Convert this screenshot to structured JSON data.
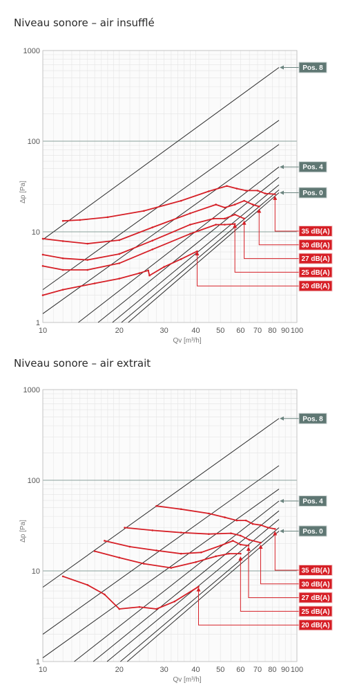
{
  "chart_data": [
    {
      "type": "line",
      "title": "Niveau sonore – air insufflé",
      "xlabel": "Qv [m³/h]",
      "ylabel": "Δp [Pa]",
      "xscale": "log",
      "yscale": "log",
      "xlim": [
        10,
        100
      ],
      "ylim": [
        1,
        1000
      ],
      "xticks": [
        "10",
        "20",
        "30",
        "40",
        "50",
        "60",
        "70",
        "80",
        "90",
        "100"
      ],
      "yticks": [
        "1",
        "10",
        "100",
        "1000"
      ],
      "position_lines": [
        {
          "name": "Pos. 8",
          "points": [
            [
              10,
              8.2
            ],
            [
              85,
              650
            ]
          ]
        },
        {
          "name": "",
          "points": [
            [
              10,
              2.3
            ],
            [
              85,
              170
            ]
          ]
        },
        {
          "name": "",
          "points": [
            [
              10,
              1.25
            ],
            [
              85,
              92
            ]
          ]
        },
        {
          "name": "Pos. 4",
          "points": [
            [
              13.8,
              1.0
            ],
            [
              85,
              52
            ]
          ]
        },
        {
          "name": "",
          "points": [
            [
              16.5,
              1.0
            ],
            [
              85,
              40
            ]
          ]
        },
        {
          "name": "",
          "points": [
            [
              18.8,
              1.0
            ],
            [
              85,
              33
            ]
          ]
        },
        {
          "name": "",
          "points": [
            [
              20.4,
              1.0
            ],
            [
              85,
              29
            ]
          ]
        },
        {
          "name": "Pos. 0",
          "points": [
            [
              21.7,
              1.0
            ],
            [
              85,
              27
            ]
          ]
        }
      ],
      "series": [
        {
          "name": "35 dB(A)",
          "pointer": [
            82,
            25
          ],
          "points": [
            [
              12,
              13.2
            ],
            [
              14,
              13.5
            ],
            [
              18,
              14.5
            ],
            [
              25,
              17
            ],
            [
              35,
              22
            ],
            [
              45,
              28
            ],
            [
              53,
              32
            ],
            [
              58,
              30
            ],
            [
              63,
              28.5
            ],
            [
              70,
              28.5
            ],
            [
              75,
              26.5
            ],
            [
              82,
              26
            ]
          ]
        },
        {
          "name": "30 dB(A)",
          "pointer": [
            71,
            18
          ],
          "points": [
            [
              10,
              8.4
            ],
            [
              12,
              7.9
            ],
            [
              15,
              7.4
            ],
            [
              20,
              8.1
            ],
            [
              27,
              11.2
            ],
            [
              38,
              16
            ],
            [
              48,
              20
            ],
            [
              52,
              18.5
            ],
            [
              57,
              20
            ],
            [
              62,
              22
            ],
            [
              67,
              20
            ],
            [
              71,
              19
            ]
          ]
        },
        {
          "name": "27 dB(A)",
          "pointer": [
            62,
            13.3
          ],
          "points": [
            [
              10,
              5.6
            ],
            [
              12,
              5.1
            ],
            [
              15,
              4.9
            ],
            [
              20,
              5.7
            ],
            [
              27,
              8
            ],
            [
              38,
              12
            ],
            [
              47,
              14
            ],
            [
              52,
              14
            ],
            [
              57,
              15.5
            ],
            [
              62,
              14
            ]
          ]
        },
        {
          "name": "25 dB(A)",
          "pointer": [
            57,
            12.3
          ],
          "points": [
            [
              10,
              4.2
            ],
            [
              12,
              3.8
            ],
            [
              15,
              3.8
            ],
            [
              20,
              4.5
            ],
            [
              27,
              6.4
            ],
            [
              38,
              9.5
            ],
            [
              48,
              12
            ],
            [
              52,
              12
            ],
            [
              57,
              12.2
            ]
          ]
        },
        {
          "name": "20 dB(A)",
          "pointer": [
            40.5,
            6.1
          ],
          "points": [
            [
              10,
              2.0
            ],
            [
              12,
              2.3
            ],
            [
              16,
              2.7
            ],
            [
              20,
              3.05
            ],
            [
              24,
              3.5
            ],
            [
              26,
              3.75
            ],
            [
              26.3,
              3.3
            ],
            [
              30,
              4.1
            ],
            [
              35,
              5.0
            ],
            [
              40.5,
              6.1
            ]
          ]
        }
      ]
    },
    {
      "type": "line",
      "title": "Niveau sonore – air extrait",
      "xlabel": "Qv [m³/h]",
      "ylabel": "Δp [Pa]",
      "xscale": "log",
      "yscale": "log",
      "xlim": [
        10,
        100
      ],
      "ylim": [
        1,
        1000
      ],
      "xticks": [
        "10",
        "20",
        "30",
        "40",
        "50",
        "60",
        "70",
        "80",
        "90",
        "100"
      ],
      "yticks": [
        "1",
        "10",
        "100",
        "1000"
      ],
      "position_lines": [
        {
          "name": "Pos. 8",
          "points": [
            [
              10,
              6.6
            ],
            [
              85,
              480
            ]
          ]
        },
        {
          "name": "",
          "points": [
            [
              10,
              2.0
            ],
            [
              85,
              145
            ]
          ]
        },
        {
          "name": "",
          "points": [
            [
              10,
              1.1
            ],
            [
              85,
              80
            ]
          ]
        },
        {
          "name": "Pos. 4",
          "points": [
            [
              13.3,
              1.0
            ],
            [
              85,
              59
            ]
          ]
        },
        {
          "name": "",
          "points": [
            [
              15.8,
              1.0
            ],
            [
              85,
              46
            ]
          ]
        },
        {
          "name": "",
          "points": [
            [
              17.9,
              1.0
            ],
            [
              85,
              37
            ]
          ]
        },
        {
          "name": "",
          "points": [
            [
              20.2,
              1.0
            ],
            [
              85,
              30
            ]
          ]
        },
        {
          "name": "Pos. 0",
          "points": [
            [
              21.5,
              1.0
            ],
            [
              85,
              27.5
            ]
          ]
        }
      ],
      "series": [
        {
          "name": "35 dB(A)",
          "pointer": [
            82,
            27.5
          ],
          "points": [
            [
              28,
              52
            ],
            [
              35,
              48
            ],
            [
              45,
              43
            ],
            [
              52,
              39
            ],
            [
              58,
              36
            ],
            [
              63,
              36
            ],
            [
              67,
              33
            ],
            [
              72,
              32
            ],
            [
              77,
              30
            ],
            [
              82,
              29
            ]
          ]
        },
        {
          "name": "30 dB(A)",
          "pointer": [
            72,
            19.5
          ],
          "points": [
            [
              21,
              30
            ],
            [
              27,
              28
            ],
            [
              35,
              26.5
            ],
            [
              45,
              25.5
            ],
            [
              55,
              26
            ],
            [
              60,
              24.5
            ],
            [
              65,
              22
            ],
            [
              72,
              20.5
            ]
          ]
        },
        {
          "name": "27 dB(A)",
          "pointer": [
            64.5,
            18.5
          ],
          "points": [
            [
              17.5,
              21.5
            ],
            [
              22,
              18.5
            ],
            [
              28,
              16.8
            ],
            [
              35,
              15.5
            ],
            [
              42,
              16
            ],
            [
              50,
              19
            ],
            [
              56,
              21.5
            ],
            [
              60,
              19.5
            ],
            [
              64.5,
              19
            ]
          ]
        },
        {
          "name": "25 dB(A)",
          "pointer": [
            60,
            14.5
          ],
          "points": [
            [
              16,
              16.5
            ],
            [
              20,
              14
            ],
            [
              25,
              12
            ],
            [
              32,
              10.8
            ],
            [
              40,
              12.5
            ],
            [
              48,
              14.5
            ],
            [
              54,
              15.5
            ],
            [
              60,
              15.5
            ]
          ]
        },
        {
          "name": "20 dB(A)",
          "pointer": [
            41,
            6.6
          ],
          "points": [
            [
              12,
              8.7
            ],
            [
              15,
              7
            ],
            [
              17.5,
              5.5
            ],
            [
              20,
              3.8
            ],
            [
              24,
              4.0
            ],
            [
              28,
              3.8
            ],
            [
              33,
              4.6
            ],
            [
              41,
              6.7
            ]
          ]
        }
      ]
    }
  ]
}
